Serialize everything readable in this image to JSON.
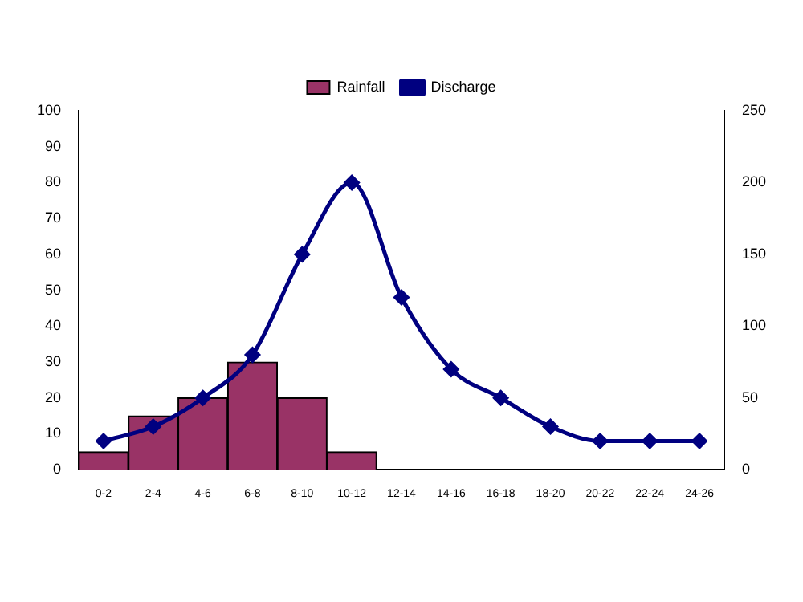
{
  "chart_data": {
    "type": "bar",
    "categories": [
      "0-2",
      "2-4",
      "4-6",
      "6-8",
      "8-10",
      "10-12",
      "12-14",
      "14-16",
      "16-18",
      "18-20",
      "20-22",
      "22-24",
      "24-26"
    ],
    "series": [
      {
        "name": "Rainfall",
        "color": "#993366",
        "values": [
          5,
          15,
          20,
          30,
          20,
          5,
          0,
          0,
          0,
          0,
          0,
          0,
          0
        ]
      },
      {
        "name": "Discharge",
        "type": "line",
        "axis": "y2",
        "color": "#000080",
        "values": [
          20,
          30,
          50,
          80,
          150,
          200,
          120,
          70,
          50,
          30,
          20,
          20,
          20
        ]
      }
    ],
    "ylim": [
      0,
      100
    ],
    "yticks": [
      0,
      10,
      20,
      30,
      40,
      50,
      60,
      70,
      80,
      90,
      100
    ],
    "y2lim": [
      0,
      250
    ],
    "y2ticks": [
      0,
      50,
      100,
      150,
      200,
      250
    ],
    "grid": false,
    "legend": "top",
    "marker": "diamond",
    "line_style": "solid"
  }
}
